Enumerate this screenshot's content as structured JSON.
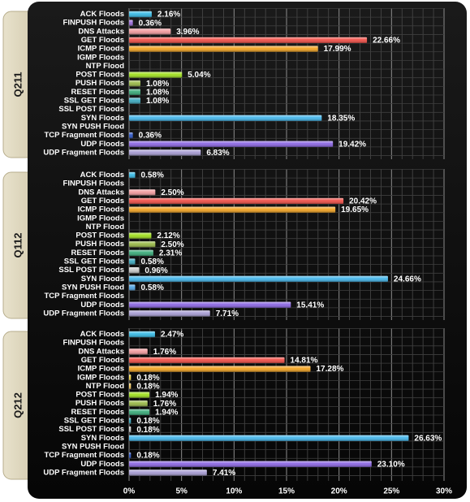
{
  "chart_data": {
    "type": "bar",
    "orientation": "horizontal",
    "categories": [
      "ACK Floods",
      "FINPUSH Floods",
      "DNS Attacks",
      "GET Floods",
      "ICMP Floods",
      "IGMP Floods",
      "NTP Flood",
      "POST Floods",
      "PUSH Floods",
      "RESET Floods",
      "SSL GET Floods",
      "SSL POST Floods",
      "SYN Floods",
      "SYN PUSH Flood",
      "TCP Fragment Floods",
      "UDP Floods",
      "UDP Fragment Floods"
    ],
    "colors": [
      "#35b9e4",
      "#9b6ad8",
      "#f19a9d",
      "#ef4c44",
      "#f2a21f",
      "#f2d23b",
      "#f4c85c",
      "#9fe01c",
      "#98b845",
      "#37a977",
      "#3aa7bd",
      "#c9c9c9",
      "#41b4e9",
      "#4ea2e2",
      "#2b54c4",
      "#8a64e2",
      "#a69bd2"
    ],
    "panels": [
      {
        "label": "Q211",
        "values": [
          2.16,
          0.36,
          3.96,
          22.66,
          17.99,
          0,
          0,
          5.04,
          1.08,
          1.08,
          1.08,
          0,
          18.35,
          0,
          0.36,
          19.42,
          6.83
        ]
      },
      {
        "label": "Q112",
        "values": [
          0.58,
          0,
          2.5,
          20.42,
          19.65,
          0,
          0,
          2.12,
          2.5,
          2.31,
          0.58,
          0.96,
          24.66,
          0.58,
          0,
          15.41,
          7.71
        ]
      },
      {
        "label": "Q212",
        "values": [
          2.47,
          0,
          1.76,
          14.81,
          17.28,
          0.18,
          0.18,
          1.94,
          1.76,
          1.94,
          0.18,
          0.18,
          26.63,
          0,
          0.18,
          23.1,
          7.41
        ]
      }
    ],
    "xlim": [
      0,
      30
    ],
    "xticks": [
      "0%",
      "5%",
      "10%",
      "15%",
      "20%",
      "25%",
      "30%"
    ],
    "grid": true
  }
}
